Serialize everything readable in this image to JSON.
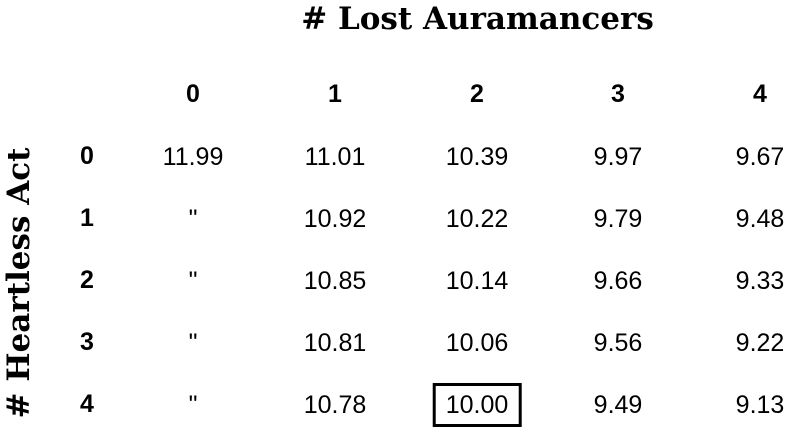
{
  "chart_data": {
    "type": "table",
    "title": "# Lost Auramancers",
    "ylabel": "# Heartless Act",
    "columns": [
      "0",
      "1",
      "2",
      "3",
      "4"
    ],
    "rows": [
      "0",
      "1",
      "2",
      "3",
      "4"
    ],
    "cells": [
      [
        "11.99",
        "11.01",
        "10.39",
        "9.97",
        "9.67"
      ],
      [
        "\"",
        "10.92",
        "10.22",
        "9.79",
        "9.48"
      ],
      [
        "\"",
        "10.85",
        "10.14",
        "9.66",
        "9.33"
      ],
      [
        "\"",
        "10.81",
        "10.06",
        "9.56",
        "9.22"
      ],
      [
        "\"",
        "10.78",
        "10.00",
        "9.49",
        "9.13"
      ]
    ],
    "highlighted_cell": {
      "row": 4,
      "column": 2
    }
  }
}
